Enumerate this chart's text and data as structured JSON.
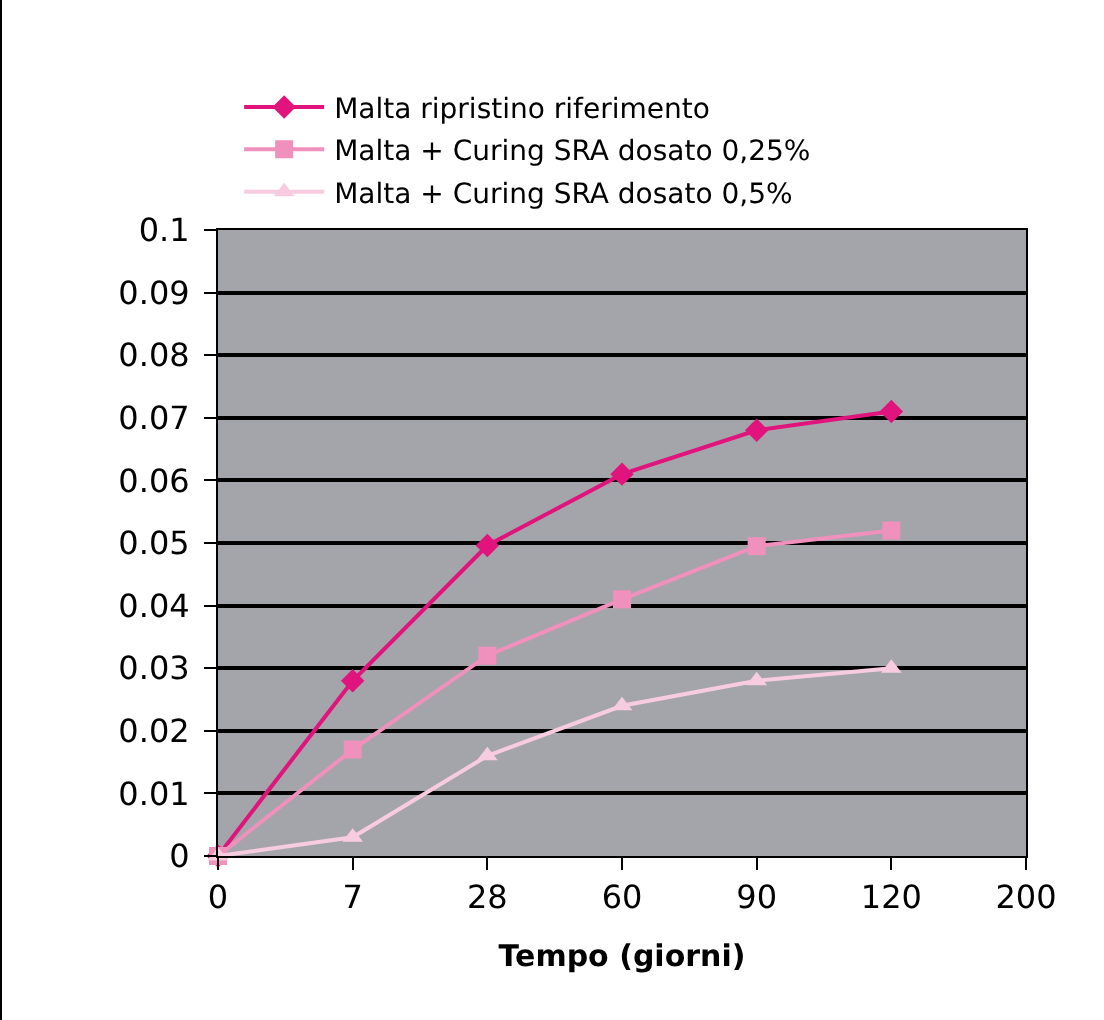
{
  "chart_data": {
    "type": "line",
    "xlabel": "Tempo (giorni)",
    "categories": [
      "0",
      "7",
      "28",
      "60",
      "90",
      "120",
      "200"
    ],
    "series": [
      {
        "name": "Malta ripristino riferimento",
        "color": "#e0147c",
        "marker": "diamond",
        "values": [
          0,
          0.028,
          0.0496,
          0.061,
          0.068,
          0.071,
          null
        ]
      },
      {
        "name": "Malta + Curing SRA dosato 0,25%",
        "color": "#f090bc",
        "marker": "square",
        "values": [
          0,
          0.017,
          0.032,
          0.041,
          0.0495,
          0.052,
          null
        ]
      },
      {
        "name": "Malta + Curing SRA dosato 0,5%",
        "color": "#f8cce0",
        "marker": "triangle",
        "values": [
          0,
          0.003,
          0.016,
          0.024,
          0.028,
          0.03,
          null
        ]
      }
    ],
    "ylim": [
      0,
      0.1
    ],
    "yticks": [
      0,
      0.01,
      0.02,
      0.03,
      0.04,
      0.05,
      0.06,
      0.07,
      0.08,
      0.09,
      0.1
    ],
    "grid": "y",
    "legend": "top",
    "line_style": "solid"
  }
}
